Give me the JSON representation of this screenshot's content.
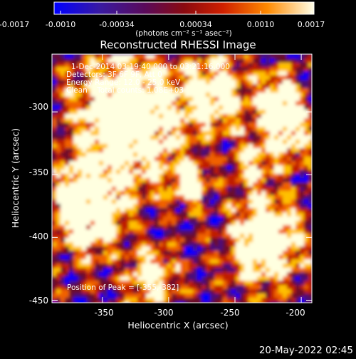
{
  "colorbar": {
    "tick_labels": [
      "-0.0017",
      "-0.0010",
      "-0.00034",
      "0.00034",
      "0.0010",
      "0.0017"
    ],
    "units_label": "(photons cm⁻² s⁻¹ asec⁻²)",
    "colors": [
      "#0000ff",
      "#4a0a7a",
      "#6a0a2a",
      "#c01c00",
      "#f06000",
      "#ffc000",
      "#ffffe0"
    ]
  },
  "image": {
    "title": "Reconstructed RHESSI Image",
    "annotations": [
      "1-Dec-2014 03:19:40.000 to 03:21:16.000",
      "Detectors: 3F 6F 9F, Att 0",
      "Energy Range: 12.0 - 25.0 keV",
      "Clean    Total counts: 1.08E+03"
    ],
    "peak_label": "Position of Peak = [-355,-382]",
    "x_label": "Heliocentric X (arcsec)",
    "y_label": "Heliocentric Y (arcsec)",
    "x_ticks": [
      "-350",
      "-300",
      "-250",
      "-200"
    ],
    "y_ticks": [
      "-300",
      "-350",
      "-400",
      "-450"
    ],
    "x_tick_values": [
      -350,
      -300,
      -250,
      -200
    ],
    "y_tick_values": [
      -300,
      -350,
      -400,
      -450
    ],
    "x_range": [
      -388,
      -192
    ],
    "y_range": [
      -452,
      -254
    ]
  },
  "footer": {
    "date": "20-May-2022 02:45"
  }
}
